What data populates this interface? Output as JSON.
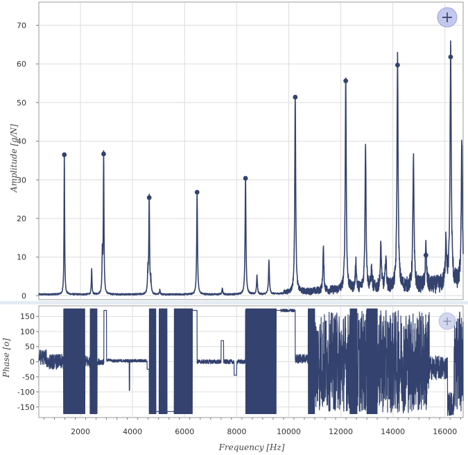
{
  "chart_data": [
    {
      "type": "line",
      "name_id": "amplitude",
      "ylabel": "Amplitude [g/N]",
      "xlim": [
        400,
        16700
      ],
      "ylim": [
        -1,
        76
      ],
      "yticks": [
        0,
        10,
        20,
        30,
        40,
        50,
        60,
        70
      ],
      "line_color": "#33426e",
      "peaks": [
        {
          "x": 1380,
          "y": 36.5
        },
        {
          "x": 2890,
          "y": 36.7
        },
        {
          "x": 4640,
          "y": 25.4
        },
        {
          "x": 6480,
          "y": 26.8
        },
        {
          "x": 8340,
          "y": 30.4
        },
        {
          "x": 10250,
          "y": 51.4
        },
        {
          "x": 12190,
          "y": 55.6
        },
        {
          "x": 13180,
          "y": 4.8
        },
        {
          "x": 14180,
          "y": 59.7
        },
        {
          "x": 15270,
          "y": 10.5
        },
        {
          "x": 16220,
          "y": 61.8
        }
      ],
      "minor_peaks": [
        {
          "x": 2430,
          "y": 6.5
        },
        {
          "x": 2840,
          "y": 10.5
        },
        {
          "x": 4590,
          "y": 6.0
        },
        {
          "x": 4700,
          "y": 3.5
        },
        {
          "x": 5050,
          "y": 1.2
        },
        {
          "x": 7450,
          "y": 1.5
        },
        {
          "x": 8780,
          "y": 4.8
        },
        {
          "x": 9240,
          "y": 8.6
        },
        {
          "x": 11330,
          "y": 11.0
        },
        {
          "x": 12580,
          "y": 7.0
        },
        {
          "x": 12950,
          "y": 38.0
        },
        {
          "x": 13540,
          "y": 11.0
        },
        {
          "x": 13730,
          "y": 8.0
        },
        {
          "x": 14790,
          "y": 33.5
        },
        {
          "x": 16040,
          "y": 12.0
        },
        {
          "x": 16650,
          "y": 36.8
        }
      ]
    },
    {
      "type": "line",
      "name_id": "phase",
      "xlabel": "Frequency [Hz]",
      "ylabel": "Phase [o]",
      "xlim": [
        400,
        16700
      ],
      "ylim": [
        -185,
        185
      ],
      "xticks": [
        2000,
        4000,
        6000,
        8000,
        10000,
        12000,
        14000,
        16000
      ],
      "yticks": [
        150,
        100,
        50,
        0,
        -50,
        -100,
        -150
      ],
      "line_color": "#33426e",
      "dense_bands": [
        [
          1350,
          2170
        ],
        [
          2370,
          2640
        ],
        [
          4640,
          4900
        ],
        [
          5020,
          5330
        ],
        [
          5600,
          6300
        ],
        [
          8350,
          9520
        ],
        [
          10750,
          11000
        ],
        [
          12350,
          12620
        ],
        [
          13000,
          13400
        ]
      ]
    }
  ],
  "controls": {
    "zoom_top": "+",
    "zoom_bottom": "+"
  }
}
